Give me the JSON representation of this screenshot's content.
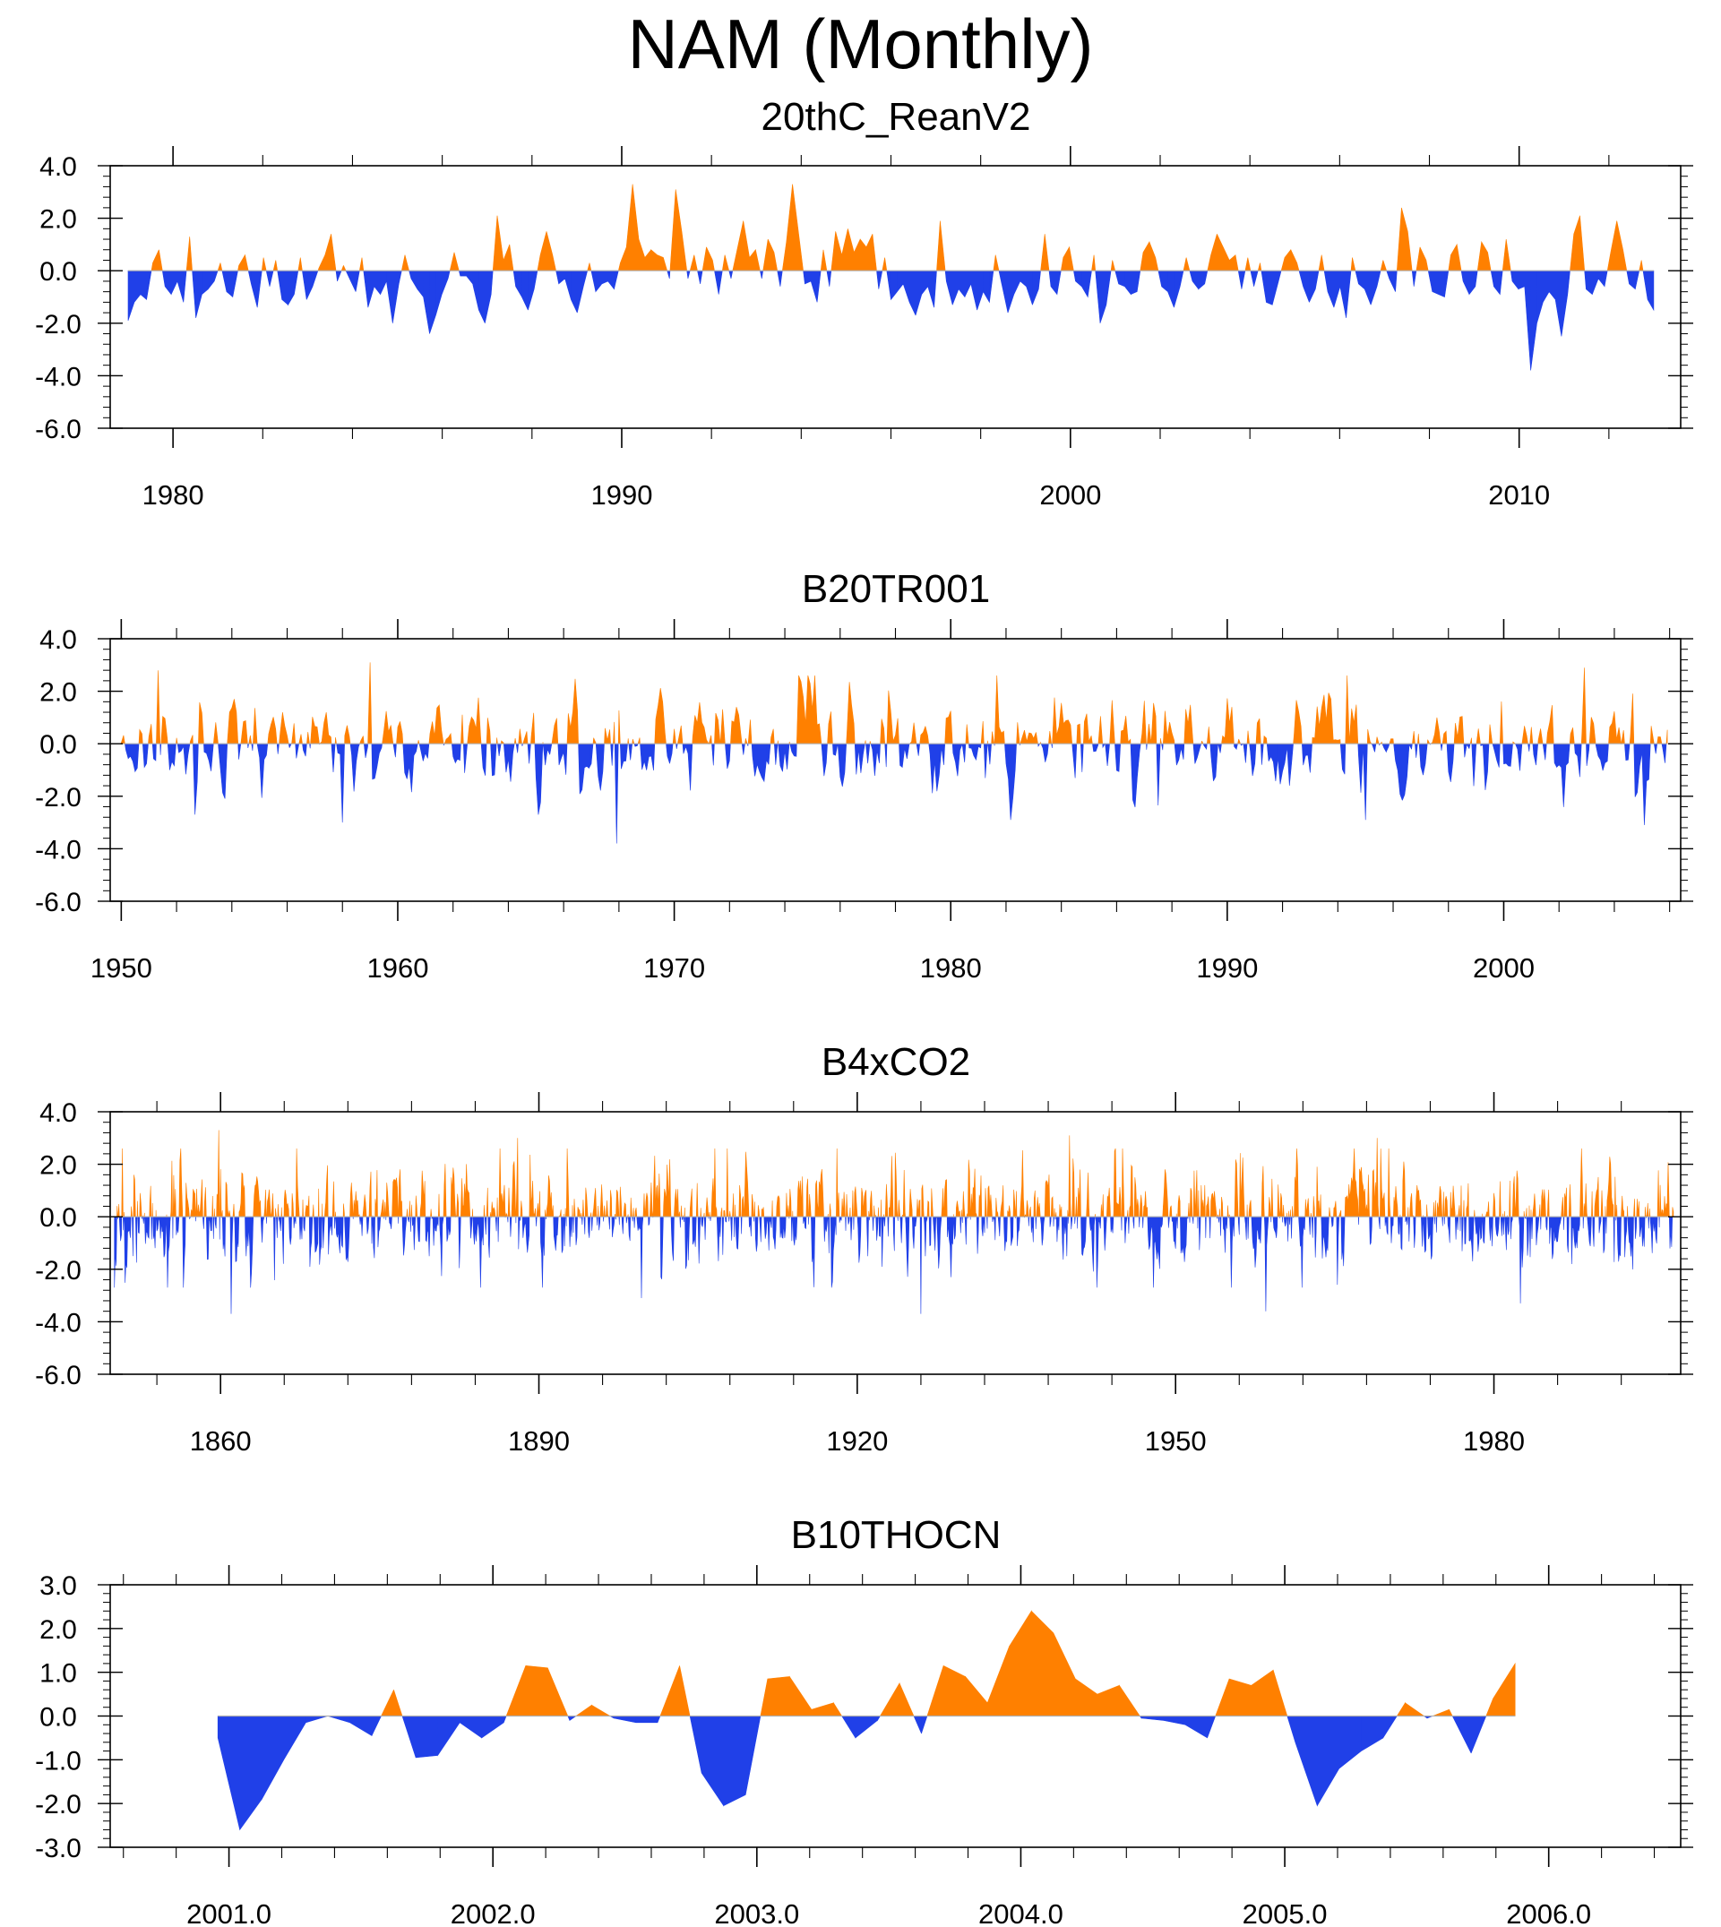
{
  "page": {
    "title": "NAM (Monthly)"
  },
  "colors": {
    "positive": "#ff8000",
    "negative": "#2040e8",
    "axis": "#000000",
    "zero_line": "#b0b0b0"
  },
  "chart_data": [
    {
      "type": "area",
      "title": "20thC_ReanV2",
      "xlabel": "",
      "ylabel": "",
      "xlim": [
        1978.6,
        2013.6
      ],
      "ylim": [
        -6,
        4
      ],
      "yticks": [
        4,
        2,
        0,
        -2,
        -4,
        -6
      ],
      "ytick_labels": [
        "4.0",
        "2.0",
        "0.0",
        "-2.0",
        "-4.0",
        "-6.0"
      ],
      "xticks": [
        1980,
        1990,
        2000,
        2010
      ],
      "xtick_labels": [
        "1980",
        "1990",
        "2000",
        "2010"
      ],
      "grid": false,
      "series": [
        {
          "x_start": 1979.0,
          "x_end": 2013.0,
          "values": [
            -1.9,
            -1.2,
            -0.9,
            -1.1,
            0.3,
            0.8,
            -0.6,
            -0.9,
            -0.4,
            -1.2,
            1.3,
            -1.8,
            -0.9,
            -0.7,
            -0.4,
            0.3,
            -0.8,
            -1.0,
            0.2,
            0.6,
            -0.5,
            -1.4,
            0.5,
            -0.6,
            0.4,
            -1.1,
            -1.3,
            -0.9,
            0.5,
            -1.1,
            -0.6,
            0.1,
            0.6,
            1.4,
            -0.4,
            0.2,
            -0.3,
            -0.8,
            0.5,
            -1.4,
            -0.6,
            -0.9,
            -0.4,
            -2.0,
            -0.5,
            0.6,
            -0.3,
            -0.7,
            -1.0,
            -2.4,
            -1.7,
            -0.9,
            -0.3,
            0.7,
            -0.2,
            -0.2,
            -0.5,
            -1.5,
            -2.0,
            -0.9,
            2.1,
            0.4,
            1.0,
            -0.6,
            -1.0,
            -1.5,
            -0.7,
            0.6,
            1.5,
            0.6,
            -0.5,
            -0.3,
            -1.1,
            -1.6,
            -0.6,
            0.3,
            -0.8,
            -0.5,
            -0.4,
            -0.7,
            0.3,
            0.9,
            3.3,
            1.2,
            0.5,
            0.8,
            0.6,
            0.5,
            -0.3,
            3.1,
            1.5,
            -0.3,
            0.6,
            -0.5,
            0.9,
            0.4,
            -0.9,
            0.6,
            -0.3,
            0.8,
            1.9,
            0.5,
            0.8,
            -0.3,
            1.2,
            0.7,
            -0.6,
            1.1,
            3.3,
            1.4,
            -0.5,
            -0.4,
            -1.2,
            0.8,
            -0.6,
            1.5,
            0.6,
            1.6,
            0.7,
            1.2,
            0.9,
            1.4,
            -0.7,
            0.5,
            -1.1,
            -0.8,
            -0.5,
            -1.2,
            -1.7,
            -0.9,
            -0.6,
            -1.4,
            1.9,
            -0.4,
            -1.3,
            -0.7,
            -1.0,
            -0.5,
            -1.5,
            -0.8,
            -1.2,
            0.6,
            -0.5,
            -1.6,
            -0.9,
            -0.4,
            -0.6,
            -1.3,
            -0.7,
            1.4,
            -0.6,
            -0.9,
            0.5,
            0.9,
            -0.4,
            -0.6,
            -1.0,
            0.6,
            -2.0,
            -1.3,
            0.4,
            -0.5,
            -0.6,
            -0.9,
            -0.8,
            0.7,
            1.1,
            0.5,
            -0.6,
            -0.8,
            -1.4,
            -0.6,
            0.5,
            -0.4,
            -0.7,
            -0.5,
            0.6,
            1.4,
            0.9,
            0.4,
            0.6,
            -0.7,
            0.5,
            -0.6,
            0.3,
            -1.2,
            -1.3,
            -0.4,
            0.5,
            0.8,
            0.3,
            -0.6,
            -1.2,
            -0.7,
            0.6,
            -0.8,
            -1.4,
            -0.6,
            -1.8,
            0.5,
            -0.5,
            -0.7,
            -1.3,
            -0.6,
            0.4,
            -0.3,
            -0.8,
            2.4,
            1.5,
            -0.6,
            0.9,
            0.4,
            -0.8,
            -0.9,
            -1.0,
            0.6,
            1.0,
            -0.4,
            -0.9,
            -0.6,
            1.1,
            0.7,
            -0.6,
            -0.9,
            1.2,
            -0.4,
            -0.7,
            -0.6,
            -3.8,
            -2.0,
            -1.2,
            -0.8,
            -1.1,
            -2.5,
            -0.9,
            1.4,
            2.1,
            -0.7,
            -0.9,
            -0.3,
            -0.6,
            0.7,
            1.9,
            0.8,
            -0.5,
            -0.7,
            0.4,
            -1.1,
            -1.5
          ]
        }
      ]
    },
    {
      "type": "area",
      "title": "B20TR001",
      "xlabel": "",
      "ylabel": "",
      "xlim": [
        1949.6,
        2006.4
      ],
      "ylim": [
        -6,
        4
      ],
      "yticks": [
        4,
        2,
        0,
        -2,
        -4,
        -6
      ],
      "ytick_labels": [
        "4.0",
        "2.0",
        "0.0",
        "-2.0",
        "-4.0",
        "-6.0"
      ],
      "xticks": [
        1950,
        1960,
        1970,
        1980,
        1990,
        2000
      ],
      "xtick_labels": [
        "1950",
        "1960",
        "1970",
        "1980",
        "1990",
        "2000"
      ],
      "grid": false,
      "series": [
        {
          "x_start": 1950.0,
          "x_end": 2006.0,
          "seed": 17,
          "amplitude": 1.25,
          "spikes": [
            [
              1951.3,
              2.8
            ],
            [
              1958.0,
              -3.0
            ],
            [
              1959.0,
              3.1
            ],
            [
              1967.9,
              -3.8
            ],
            [
              1982.2,
              -2.9
            ],
            [
              1994.3,
              2.6
            ],
            [
              1995.0,
              -2.9
            ],
            [
              2002.9,
              2.9
            ],
            [
              2005.1,
              -3.1
            ]
          ]
        }
      ]
    },
    {
      "type": "area",
      "title": "B4xCO2",
      "xlabel": "",
      "ylabel": "",
      "xlim": [
        1849.6,
        1997.6
      ],
      "ylim": [
        -6,
        4
      ],
      "yticks": [
        4,
        2,
        0,
        -2,
        -4,
        -6
      ],
      "ytick_labels": [
        "4.0",
        "2.0",
        "0.0",
        "-2.0",
        "-4.0",
        "-6.0"
      ],
      "xticks": [
        1860,
        1890,
        1920,
        1950,
        1980
      ],
      "xtick_labels": [
        "1860",
        "1890",
        "1920",
        "1950",
        "1980"
      ],
      "grid": false,
      "series": [
        {
          "x_start": 1850.0,
          "x_end": 1997.0,
          "seed": 91,
          "amplitude": 1.3,
          "spikes": [
            [
              1859.8,
              3.3
            ],
            [
              1861.0,
              -3.7
            ],
            [
              1926.0,
              -3.7
            ],
            [
              1940.0,
              3.1
            ],
            [
              1958.5,
              -3.6
            ],
            [
              1969.0,
              3.0
            ],
            [
              1982.5,
              -3.3
            ],
            [
              1888.0,
              3.0
            ],
            [
              1899.7,
              -3.1
            ]
          ]
        }
      ]
    },
    {
      "type": "area",
      "title": "B10THOCN",
      "xlabel": "",
      "ylabel": "",
      "xlim": [
        2000.55,
        2006.5
      ],
      "ylim": [
        -3,
        3
      ],
      "yticks": [
        3,
        2,
        1,
        0,
        -1,
        -2,
        -3
      ],
      "ytick_labels": [
        "3.0",
        "2.0",
        "1.0",
        "0.0",
        "-1.0",
        "-2.0",
        "-3.0"
      ],
      "xticks": [
        2001,
        2002,
        2003,
        2004,
        2005,
        2006
      ],
      "xtick_labels": [
        "2001.0",
        "2002.0",
        "2003.0",
        "2004.0",
        "2005.0",
        "2006.0"
      ],
      "grid": false,
      "series": [
        {
          "x_start": 2000.958,
          "step": 0.0833,
          "values": [
            -0.5,
            -2.6,
            -1.9,
            -1.0,
            -0.15,
            0.0,
            -0.15,
            -0.45,
            0.6,
            -0.95,
            -0.9,
            -0.15,
            -0.5,
            -0.15,
            1.15,
            1.1,
            -0.1,
            0.25,
            -0.05,
            -0.15,
            -0.15,
            1.15,
            -1.3,
            -2.05,
            -1.8,
            0.85,
            0.9,
            0.15,
            0.3,
            -0.5,
            -0.1,
            0.75,
            -0.4,
            1.15,
            0.9,
            0.3,
            1.6,
            2.4,
            1.9,
            0.85,
            0.5,
            0.7,
            -0.05,
            -0.1,
            -0.2,
            -0.5,
            0.85,
            0.7,
            1.05,
            -0.6,
            -2.05,
            -1.2,
            -0.8,
            -0.5,
            0.3,
            -0.05,
            0.15,
            -0.85,
            0.4,
            1.2
          ]
        }
      ]
    }
  ]
}
